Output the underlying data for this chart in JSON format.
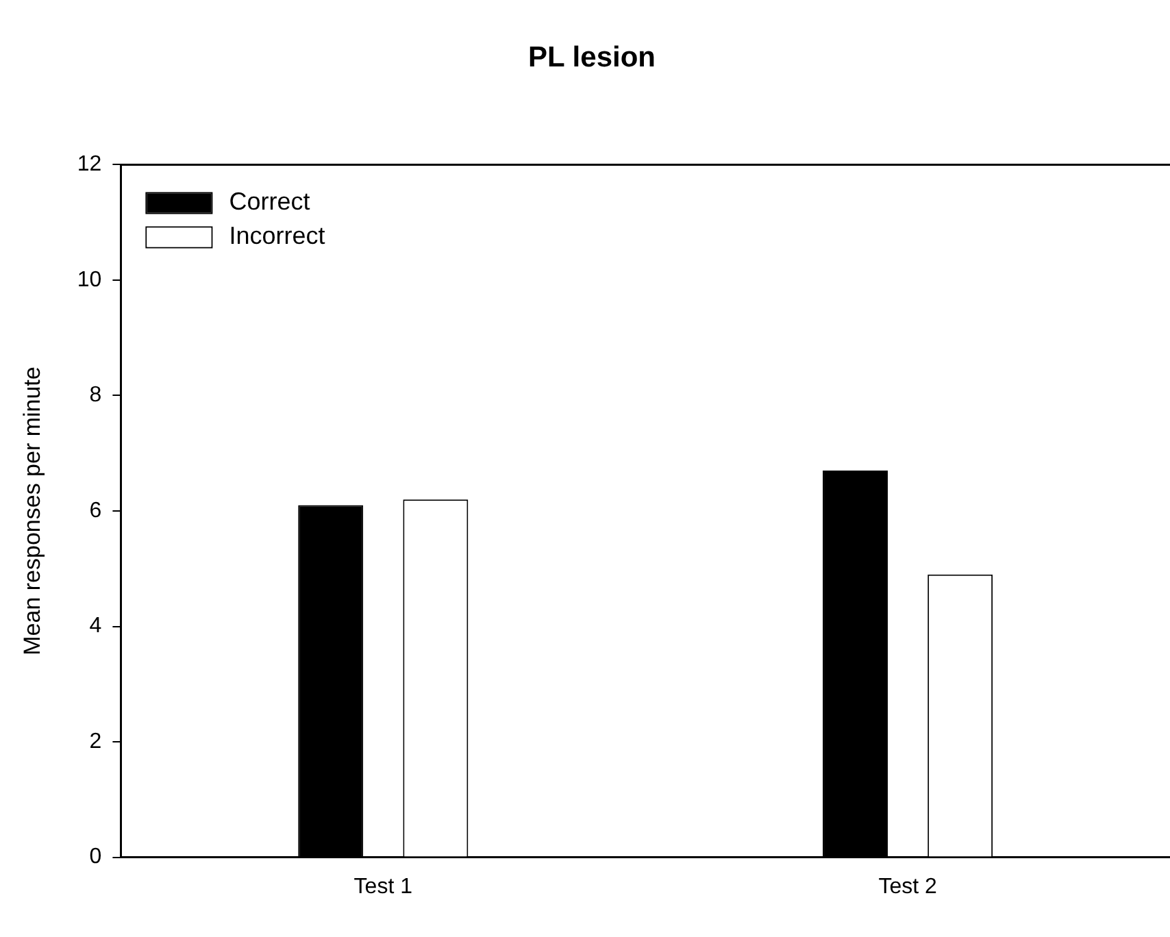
{
  "chart_data": {
    "type": "bar",
    "title": "PL lesion",
    "ylabel": "Mean responses per minute",
    "categories": [
      "Test 1",
      "Test 2"
    ],
    "series": [
      {
        "name": "Correct",
        "color": "#000000",
        "values": [
          6.1,
          6.7
        ]
      },
      {
        "name": "Incorrect",
        "color": "#ffffff",
        "values": [
          6.2,
          4.9
        ]
      }
    ],
    "ylim": [
      0,
      12
    ],
    "yticks": [
      0,
      2,
      4,
      6,
      8,
      10,
      12
    ],
    "grid": false,
    "legend": "top left"
  }
}
